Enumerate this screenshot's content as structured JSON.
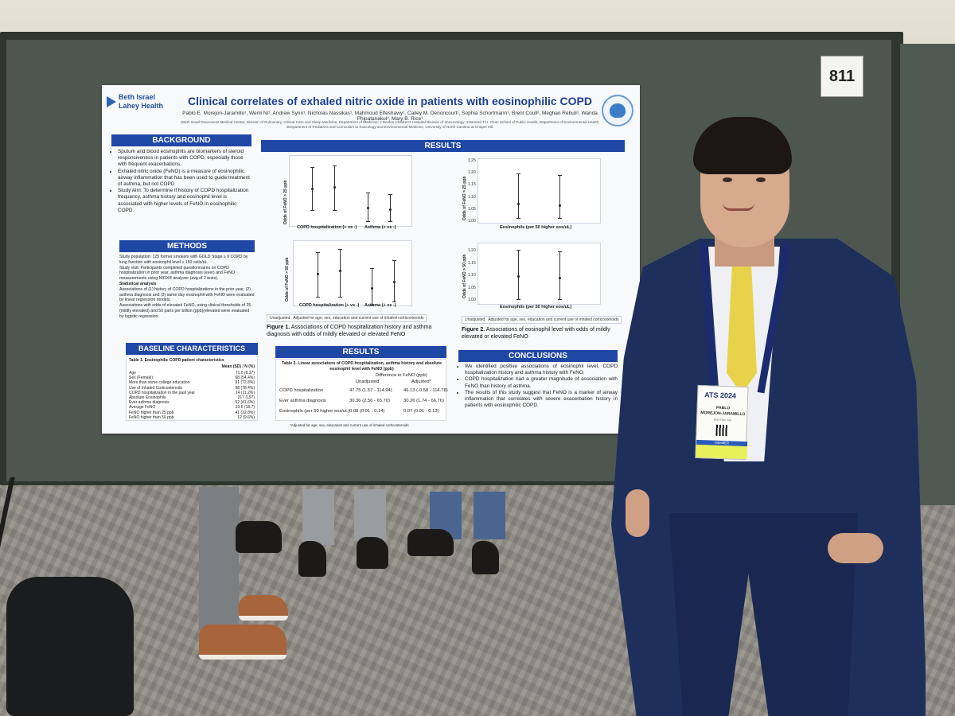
{
  "scene": {
    "board_number": "811",
    "badge": {
      "event": "ATS 2024",
      "first_name": "PABLO",
      "last_name": "MOREJON-JARAMILLO",
      "city": "BOSTON, MA",
      "member_label": "MEMBER"
    }
  },
  "poster": {
    "logo_line1": "Beth Israel",
    "logo_line2": "Lahey Health",
    "seal_text": "INSTITUTE FOR LUNG HEALTH · BIDMC",
    "title": "Clinical correlates of exhaled nitric oxide in patients with eosinophilic COPD",
    "authors": "Pablo E. Morejon-Jaramillo¹, Wenli Ni¹, Andrew Synn¹, Nicholas Nassikas¹, Mahmoud Elfeshawy¹, Cailey M. Denoncourt¹, Sophia Schortmann¹, Brent Coull², Meghan Rebuli³, Wanda Phipatanakul², Mary B. Rice¹",
    "affiliations": "1Beth Israel Deaconess Medical Center, Division of Pulmonary, Critical Care and Sleep Medicine, Department of Medicine; 2 Boston Children's Hospital Division of Immunology; 3Harvard T.H. Chan School of Public Health, Department of Environmental Health; 4Department of Pediatrics and Curriculum in Toxicology and Environmental Medicine, University of North Carolina at Chapel Hill.",
    "background": {
      "heading": "BACKGROUND",
      "bullets": [
        "Sputum and blood eosinophils are biomarkers of steroid responsiveness in patients with COPD, especially those with frequent exacerbations.",
        "Exhaled nitric oxide (FeNO) is a measure of eosinophilic airway inflammation that has been used to guide treatment of asthma, but not COPD",
        "Study Aim: To determine if history of COPD hospitalization frequency, asthma history and eosinophil level is associated with higher levels of FeNO in eosinophilic COPD."
      ]
    },
    "methods": {
      "heading": "METHODS",
      "population": "Study population: 125 former smokers with GOLD Stage ≥ II COPD by lung function with eosinophil level ≥ 150 cells/uL.",
      "visit": "Study visit: Participants completed questionnaires on COPD hospitalization in prior year, asthma diagnosis (ever) and FeNO measurements using NIOX® analyzer (avg of 2 tests).",
      "analysis_heading": "Statistical analysis",
      "analysis": [
        "Associations of (1) history of COPD hospitalizations in the prior year, (2) asthma diagnosis and (3) same day eosinophil with FeNO were evaluated by linear regression models.",
        "Associations with odds of elevated FeNO, using clinical thresholds of 25 (mildly elevated) and 50 parts per billion (ppb)(elevated were evaluated by logistic regression."
      ]
    },
    "baseline": {
      "heading": "BASELINE CHARACTERISTICS",
      "table_title": "Table 1. Eosinophilic COPD patient characteristics",
      "col_header": "Mean (SD) / N (%)",
      "rows": [
        {
          "label": "Age",
          "value": "71.0 (8.37)"
        },
        {
          "label": "Sex (Female)",
          "value": "68 (54.4%)"
        },
        {
          "label": "More than some college education",
          "value": "91 (72.8%)"
        },
        {
          "label": "Use of Inhaled Corticosteroids",
          "value": "98 (78.4%)"
        },
        {
          "label": "COPD hospitalization in the past year",
          "value": "14 (11.2%)"
        },
        {
          "label": "Absolute Eosinophils",
          "value": "317 (197)"
        },
        {
          "label": "Ever asthma diagnosis",
          "value": "52 (41.6%)"
        },
        {
          "label": "Average FeNO",
          "value": "23.6 (18.7)"
        },
        {
          "label": "FeNO higher than 25 ppb",
          "value": "41 (32.8%)"
        },
        {
          "label": "FeNO higher than 50 ppb",
          "value": "12 (9.6%)"
        }
      ]
    },
    "results": {
      "heading": "RESULTS",
      "fig1_top_ylabel": "Odds of FeNO > 25 ppb",
      "fig1_bottom_ylabel": "Odds of FeNO > 50 ppb",
      "fig1_xlabels": [
        "COPD hospitalization (+ vs -)",
        "Asthma (+ vs -)"
      ],
      "fig2_top_ylabel": "Odds of FeNO > 25 ppb",
      "fig2_bottom_ylabel": "Odds of FeNO > 50 ppb",
      "fig2_xlabel": "Eosinophils (per 50 higher eos/uL)",
      "fig2_top_ticks": [
        "1.25",
        "1.20",
        "1.15",
        "1.10",
        "1.05",
        "1.00"
      ],
      "fig2_bottom_ticks": [
        "1.20",
        "1.15",
        "1.10",
        "1.05",
        "1.00"
      ],
      "legend_unadjusted": "Unadjusted",
      "legend_adjusted": "Adjusted for age, sex, education and current use of inhaled corticosteroids",
      "fig1_caption_bold": "Figure 1.",
      "fig1_caption": "Associations of COPD hospitalization history and asthma diagnosis with odds of mildly elevated or elevated FeNO",
      "fig2_caption_bold": "Figure 2.",
      "fig2_caption": "Associations of eosinophil level with odds of mildly elevated or elevated FeNO"
    },
    "results2": {
      "heading": "RESULTS",
      "table_title": "Table 2. Linear associatons of COPD hospitalization, asthma history and absolute eosinophil level with FeNO (ppb)",
      "col_group": "Difference in FeNO (ppb)",
      "col_unadjusted": "Unadjusted",
      "col_adjusted": "Adjusted*",
      "rows": [
        {
          "label": "COPD hospitalization",
          "unadjusted": "47.75 (1.57 - 114.94)",
          "adjusted": "46.13 (-0.58 - 114.78)"
        },
        {
          "label": "Ever asthma diagnosis",
          "unadjusted": "30.36 (2.56 - 65.70)",
          "adjusted": "30.26 (1.74 - 66.76)"
        },
        {
          "label": "Eosinophils (per 50 higher eos/uL)",
          "unadjusted": "0.08 (0.01 - 0.14)",
          "adjusted": "0.07 (0.01 - 0.13)"
        }
      ],
      "footnote": "*Adjusted for age, sex, education and current use of inhaled corticosteroids"
    },
    "conclusions": {
      "heading": "CONCLUSIONS",
      "bullets": [
        "We identified positive associations of eosinophil level, COPD hospitalization history and asthma history with FeNO.",
        "COPD hospitalization had a greater magnitude of association with FeNO than history of asthma.",
        "The results of this study suggest that FeNO is a marker of airway inflammation that correlates with severe exacerbation history in patients with eosinophilic COPD."
      ]
    }
  }
}
